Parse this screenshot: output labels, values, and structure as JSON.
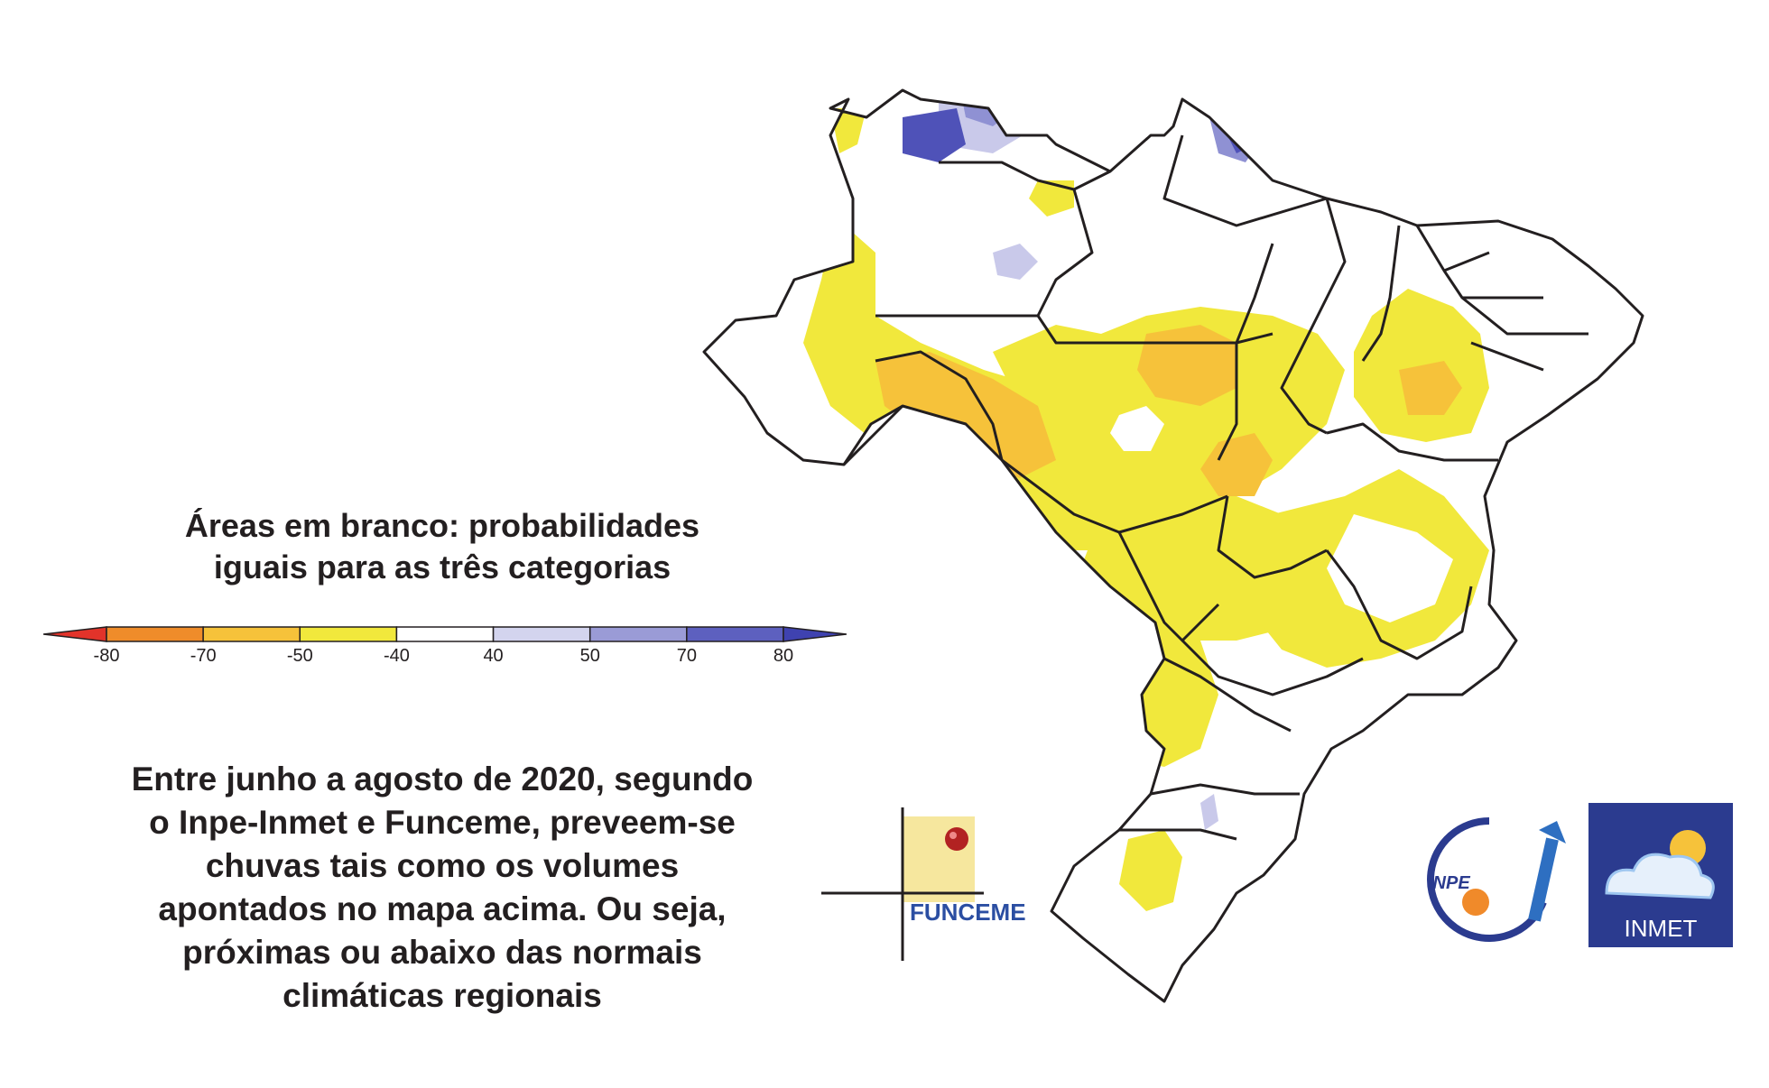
{
  "legend_caption": {
    "line1": "Áreas em branco: probabilidades",
    "line2": "iguais para as três categorias"
  },
  "colorbar": {
    "segments": [
      {
        "color": "#e2332a"
      },
      {
        "color": "#ef8c2a"
      },
      {
        "color": "#f6c23a"
      },
      {
        "color": "#f1e83c"
      },
      {
        "color": "#ffffff"
      },
      {
        "color": "#d3d4ee"
      },
      {
        "color": "#9a9bd6"
      },
      {
        "color": "#5d60bf"
      },
      {
        "color": "#3f42b0"
      }
    ],
    "ticks": [
      "-80",
      "-70",
      "-50",
      "-40",
      "40",
      "50",
      "70",
      "80"
    ]
  },
  "description": {
    "lines": [
      "Entre junho a agosto de 2020, segundo",
      "o Inpe-Inmet e Funceme, preveem-se",
      "chuvas tais como os volumes",
      "apontados no mapa acima. Ou seja,",
      "próximas ou abaixo das normais",
      "climáticas regionais"
    ]
  },
  "logos": {
    "funceme": "FUNCEME",
    "inpe": "INPE",
    "inmet": "INMET"
  },
  "map_colors": {
    "yellow": "#f1e83c",
    "orange": "#f6c23a",
    "light_blue": "#c9c9ea",
    "mid_blue": "#8f91d3",
    "dark_blue": "#4f52b8",
    "border": "#231f20"
  }
}
